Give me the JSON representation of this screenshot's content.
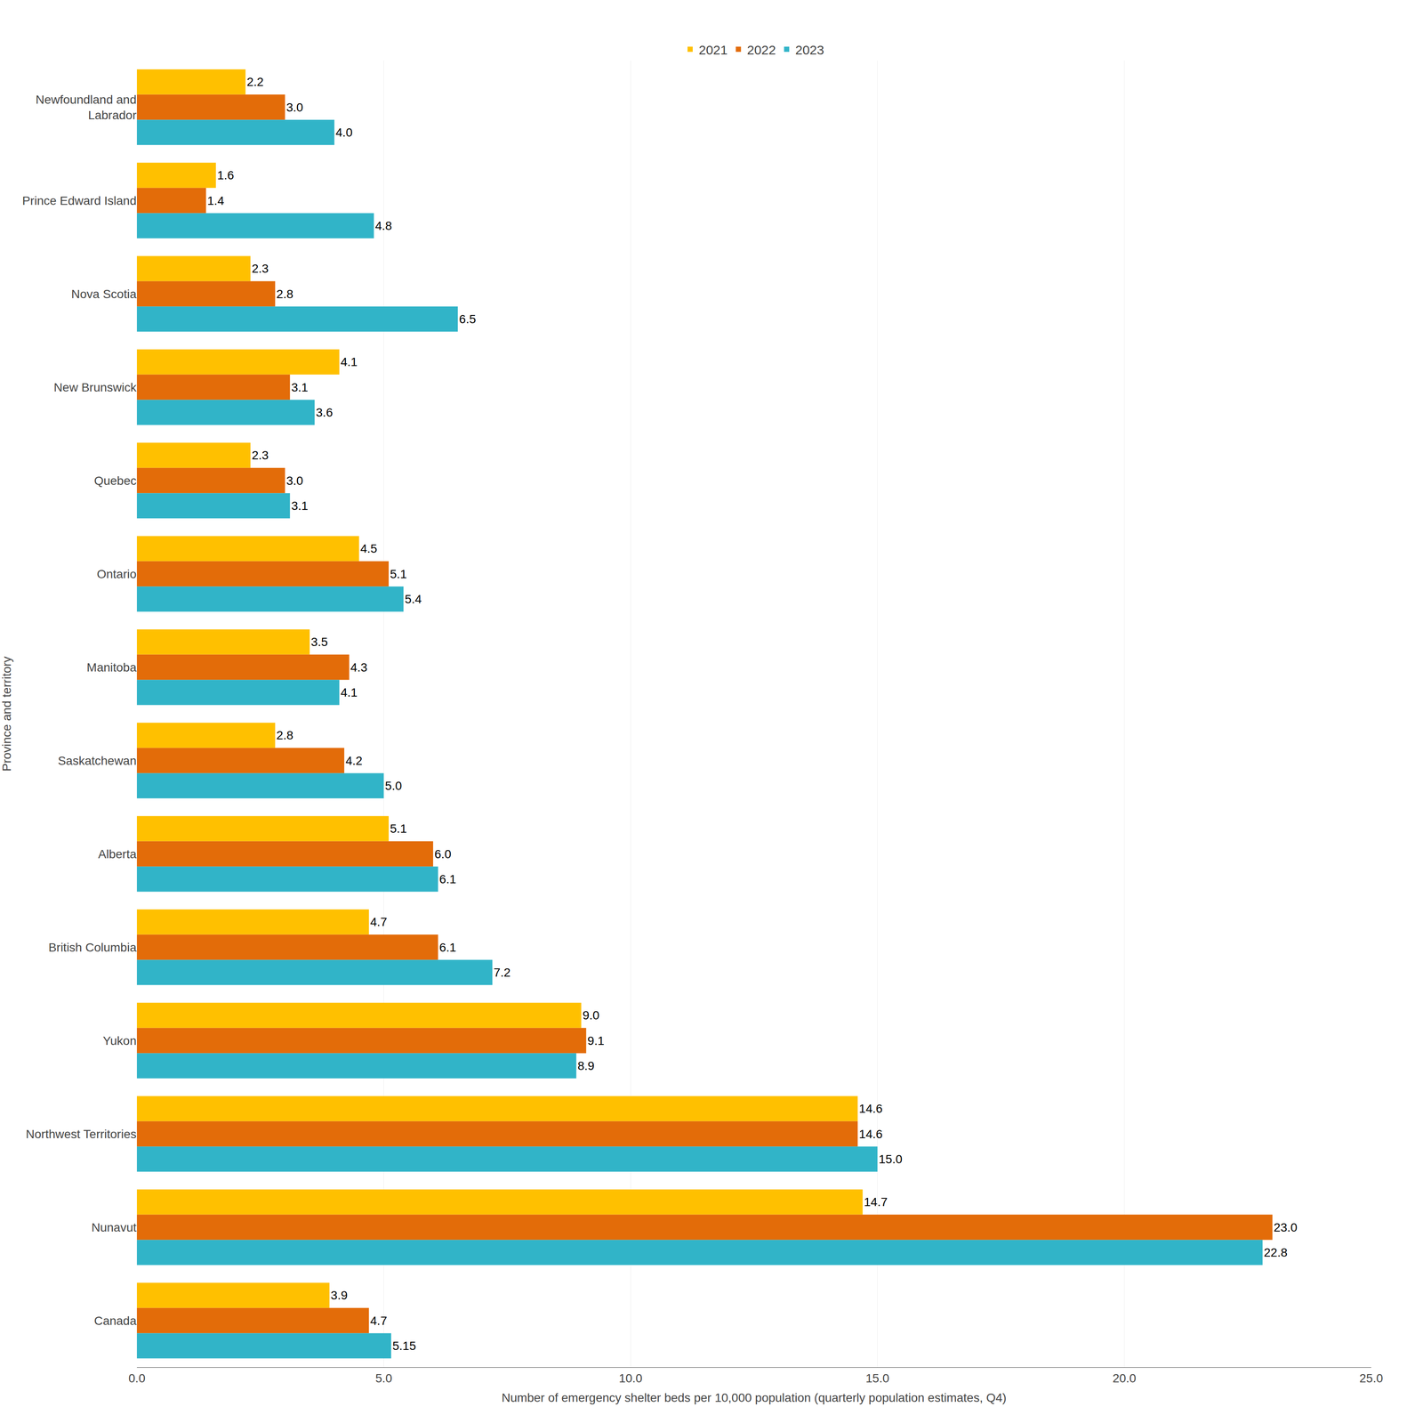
{
  "chart_data": {
    "type": "bar",
    "orientation": "horizontal",
    "xlabel": "Number of emergency shelter beds per 10,000 population (quarterly population estimates, Q4)",
    "ylabel": "Province and territory",
    "categories": [
      "Newfoundland and\nLabrador",
      "Prince Edward Island",
      "Nova Scotia",
      "New Brunswick",
      "Quebec",
      "Ontario",
      "Manitoba",
      "Saskatchewan",
      "Alberta",
      "British Columbia",
      "Yukon",
      "Northwest Territories",
      "Nunavut",
      "Canada"
    ],
    "series": [
      {
        "name": "2021",
        "color": "#FFC000",
        "values": [
          2.2,
          1.6,
          2.3,
          4.1,
          2.3,
          4.5,
          3.5,
          2.8,
          5.1,
          4.7,
          9.0,
          14.6,
          14.7,
          3.9
        ],
        "value_labels": [
          "2.2",
          "1.6",
          "2.3",
          "4.1",
          "2.3",
          "4.5",
          "3.5",
          "2.8",
          "5.1",
          "4.7",
          "9.0",
          "14.6",
          "14.7",
          "3.9"
        ]
      },
      {
        "name": "2022",
        "color": "#E36C09",
        "values": [
          3.0,
          1.4,
          2.8,
          3.1,
          3.0,
          5.1,
          4.3,
          4.2,
          6.0,
          6.1,
          9.1,
          14.6,
          23.0,
          4.7
        ],
        "value_labels": [
          "3.0",
          "1.4",
          "2.8",
          "3.1",
          "3.0",
          "5.1",
          "4.3",
          "4.2",
          "6.0",
          "6.1",
          "9.1",
          "14.6",
          "23.0",
          "4.7"
        ]
      },
      {
        "name": "2023",
        "color": "#31B4C8",
        "values": [
          4.0,
          4.8,
          6.5,
          3.6,
          3.1,
          5.4,
          4.1,
          5.0,
          6.1,
          7.2,
          8.9,
          15.0,
          22.8,
          5.15
        ],
        "value_labels": [
          "4.0",
          "4.8",
          "6.5",
          "3.6",
          "3.1",
          "5.4",
          "4.1",
          "5.0",
          "6.1",
          "7.2",
          "8.9",
          "15.0",
          "22.8",
          "5.15"
        ]
      }
    ],
    "xlim": [
      0,
      25.0
    ],
    "xticks": [
      {
        "value": 0.0,
        "label": "0.0"
      },
      {
        "value": 5.0,
        "label": "5.0"
      },
      {
        "value": 10.0,
        "label": "10.0"
      },
      {
        "value": 15.0,
        "label": "15.0"
      },
      {
        "value": 20.0,
        "label": "20.0"
      },
      {
        "value": 25.0,
        "label": "25.0"
      }
    ],
    "grid": true,
    "legend": "top",
    "data_labels": true
  }
}
